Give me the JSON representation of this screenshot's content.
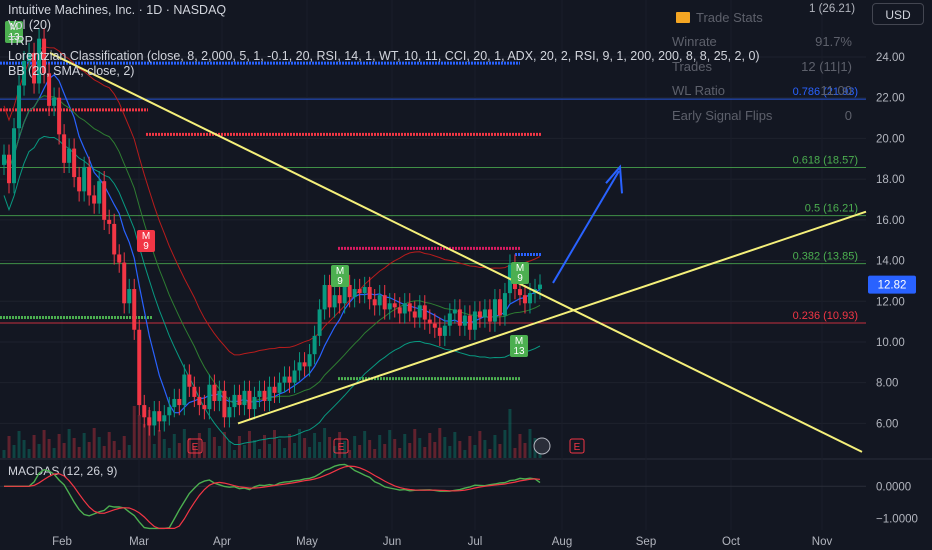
{
  "header": {
    "symbol_line": "Intuitive Machines, Inc. · 1D · NASDAQ",
    "vol": "Vol (20)",
    "trp": "TRP",
    "lorentzian": "Lorentzian Classification (close, 8, 2,000, 5, 1, -0.1, 20, RSI, 14, 1, WT, 10, 11, CCI, 20, 1, ADX, 20, 2, RSI, 9, 1, 200, 200, 8, 8, 25, 2, 0)",
    "bb": "BB (20, SMA, close, 2)"
  },
  "currency_button": "USD",
  "fib_top_label": "1 (26.21)",
  "trade_stats": {
    "title": "Trade Stats",
    "rows": [
      {
        "label": "Winrate",
        "value": "91.7%"
      },
      {
        "label": "Trades",
        "value": "12 (11|1)"
      },
      {
        "label": "WL Ratio",
        "value": "11.00"
      },
      {
        "label": "Early Signal Flips",
        "value": "0"
      }
    ]
  },
  "colors": {
    "background": "#131722",
    "up": "#089981",
    "down": "#f23645",
    "trendline": "#f5f07a",
    "bb": "#2962ff",
    "fib": "#4caf50",
    "price_tag": "#2962ff"
  },
  "chart_data": {
    "type": "candlestick",
    "price_axis": {
      "range": [
        4.3,
        26.8
      ],
      "ticks": [
        "24.00",
        "22.00",
        "20.00",
        "18.00",
        "16.00",
        "14.00",
        "12.00",
        "10.00",
        "8.00",
        "6.00"
      ],
      "tick_values": [
        24,
        22,
        20,
        18,
        16,
        14,
        12,
        10,
        8,
        6
      ]
    },
    "macd_axis": {
      "title": "MACDAS (12, 26, 9)",
      "range": [
        -1.35,
        0.75
      ],
      "ticks": [
        "0.0000",
        "−1.0000"
      ],
      "tick_values": [
        0,
        -1
      ]
    },
    "time_axis": {
      "labels": [
        "Feb",
        "Mar",
        "Apr",
        "May",
        "Jun",
        "Jul",
        "Aug",
        "Sep",
        "Oct",
        "Nov"
      ]
    },
    "last_price": "12.82",
    "last_price_value": 12.82,
    "fib_levels": [
      {
        "label": "0.786 (21.93)",
        "value": 21.93
      },
      {
        "label": "0.618 (18.57)",
        "value": 18.57
      },
      {
        "label": "0.5 (16.21)",
        "value": 16.21
      },
      {
        "label": "0.382 (13.85)",
        "value": 13.85
      },
      {
        "label": "0.236 (10.93)",
        "value": 10.93
      }
    ],
    "closes": [
      19.2,
      17.8,
      20.5,
      22.6,
      23.8,
      24.2,
      22.7,
      24.9,
      23.2,
      21.6,
      22.0,
      20.2,
      18.8,
      19.5,
      18.1,
      17.4,
      18.6,
      17.2,
      16.8,
      17.9,
      16.0,
      15.8,
      14.3,
      13.9,
      11.9,
      12.6,
      10.6,
      6.9,
      6.3,
      5.9,
      6.6,
      6.1,
      6.4,
      6.8,
      7.2,
      6.9,
      8.4,
      7.8,
      7.3,
      6.9,
      6.7,
      7.9,
      7.1,
      7.6,
      6.3,
      6.8,
      7.4,
      6.9,
      7.6,
      6.7,
      7.3,
      7.6,
      7.1,
      7.8,
      7.5,
      8.0,
      8.3,
      8.0,
      8.6,
      9.0,
      8.8,
      9.4,
      10.3,
      11.6,
      12.8,
      11.7,
      12.3,
      11.9,
      12.8,
      12.2,
      12.6,
      12.4,
      12.7,
      12.1,
      11.8,
      12.3,
      11.6,
      11.9,
      11.7,
      11.4,
      11.9,
      11.5,
      11.2,
      11.8,
      11.1,
      10.9,
      10.7,
      10.3,
      10.8,
      11.4,
      11.6,
      10.8,
      11.3,
      10.6,
      11.5,
      11.2,
      11.6,
      11.0,
      12.1,
      11.3,
      12.4,
      13.8,
      12.6,
      12.3,
      11.9,
      12.4,
      12.6,
      12.82
    ]
  }
}
